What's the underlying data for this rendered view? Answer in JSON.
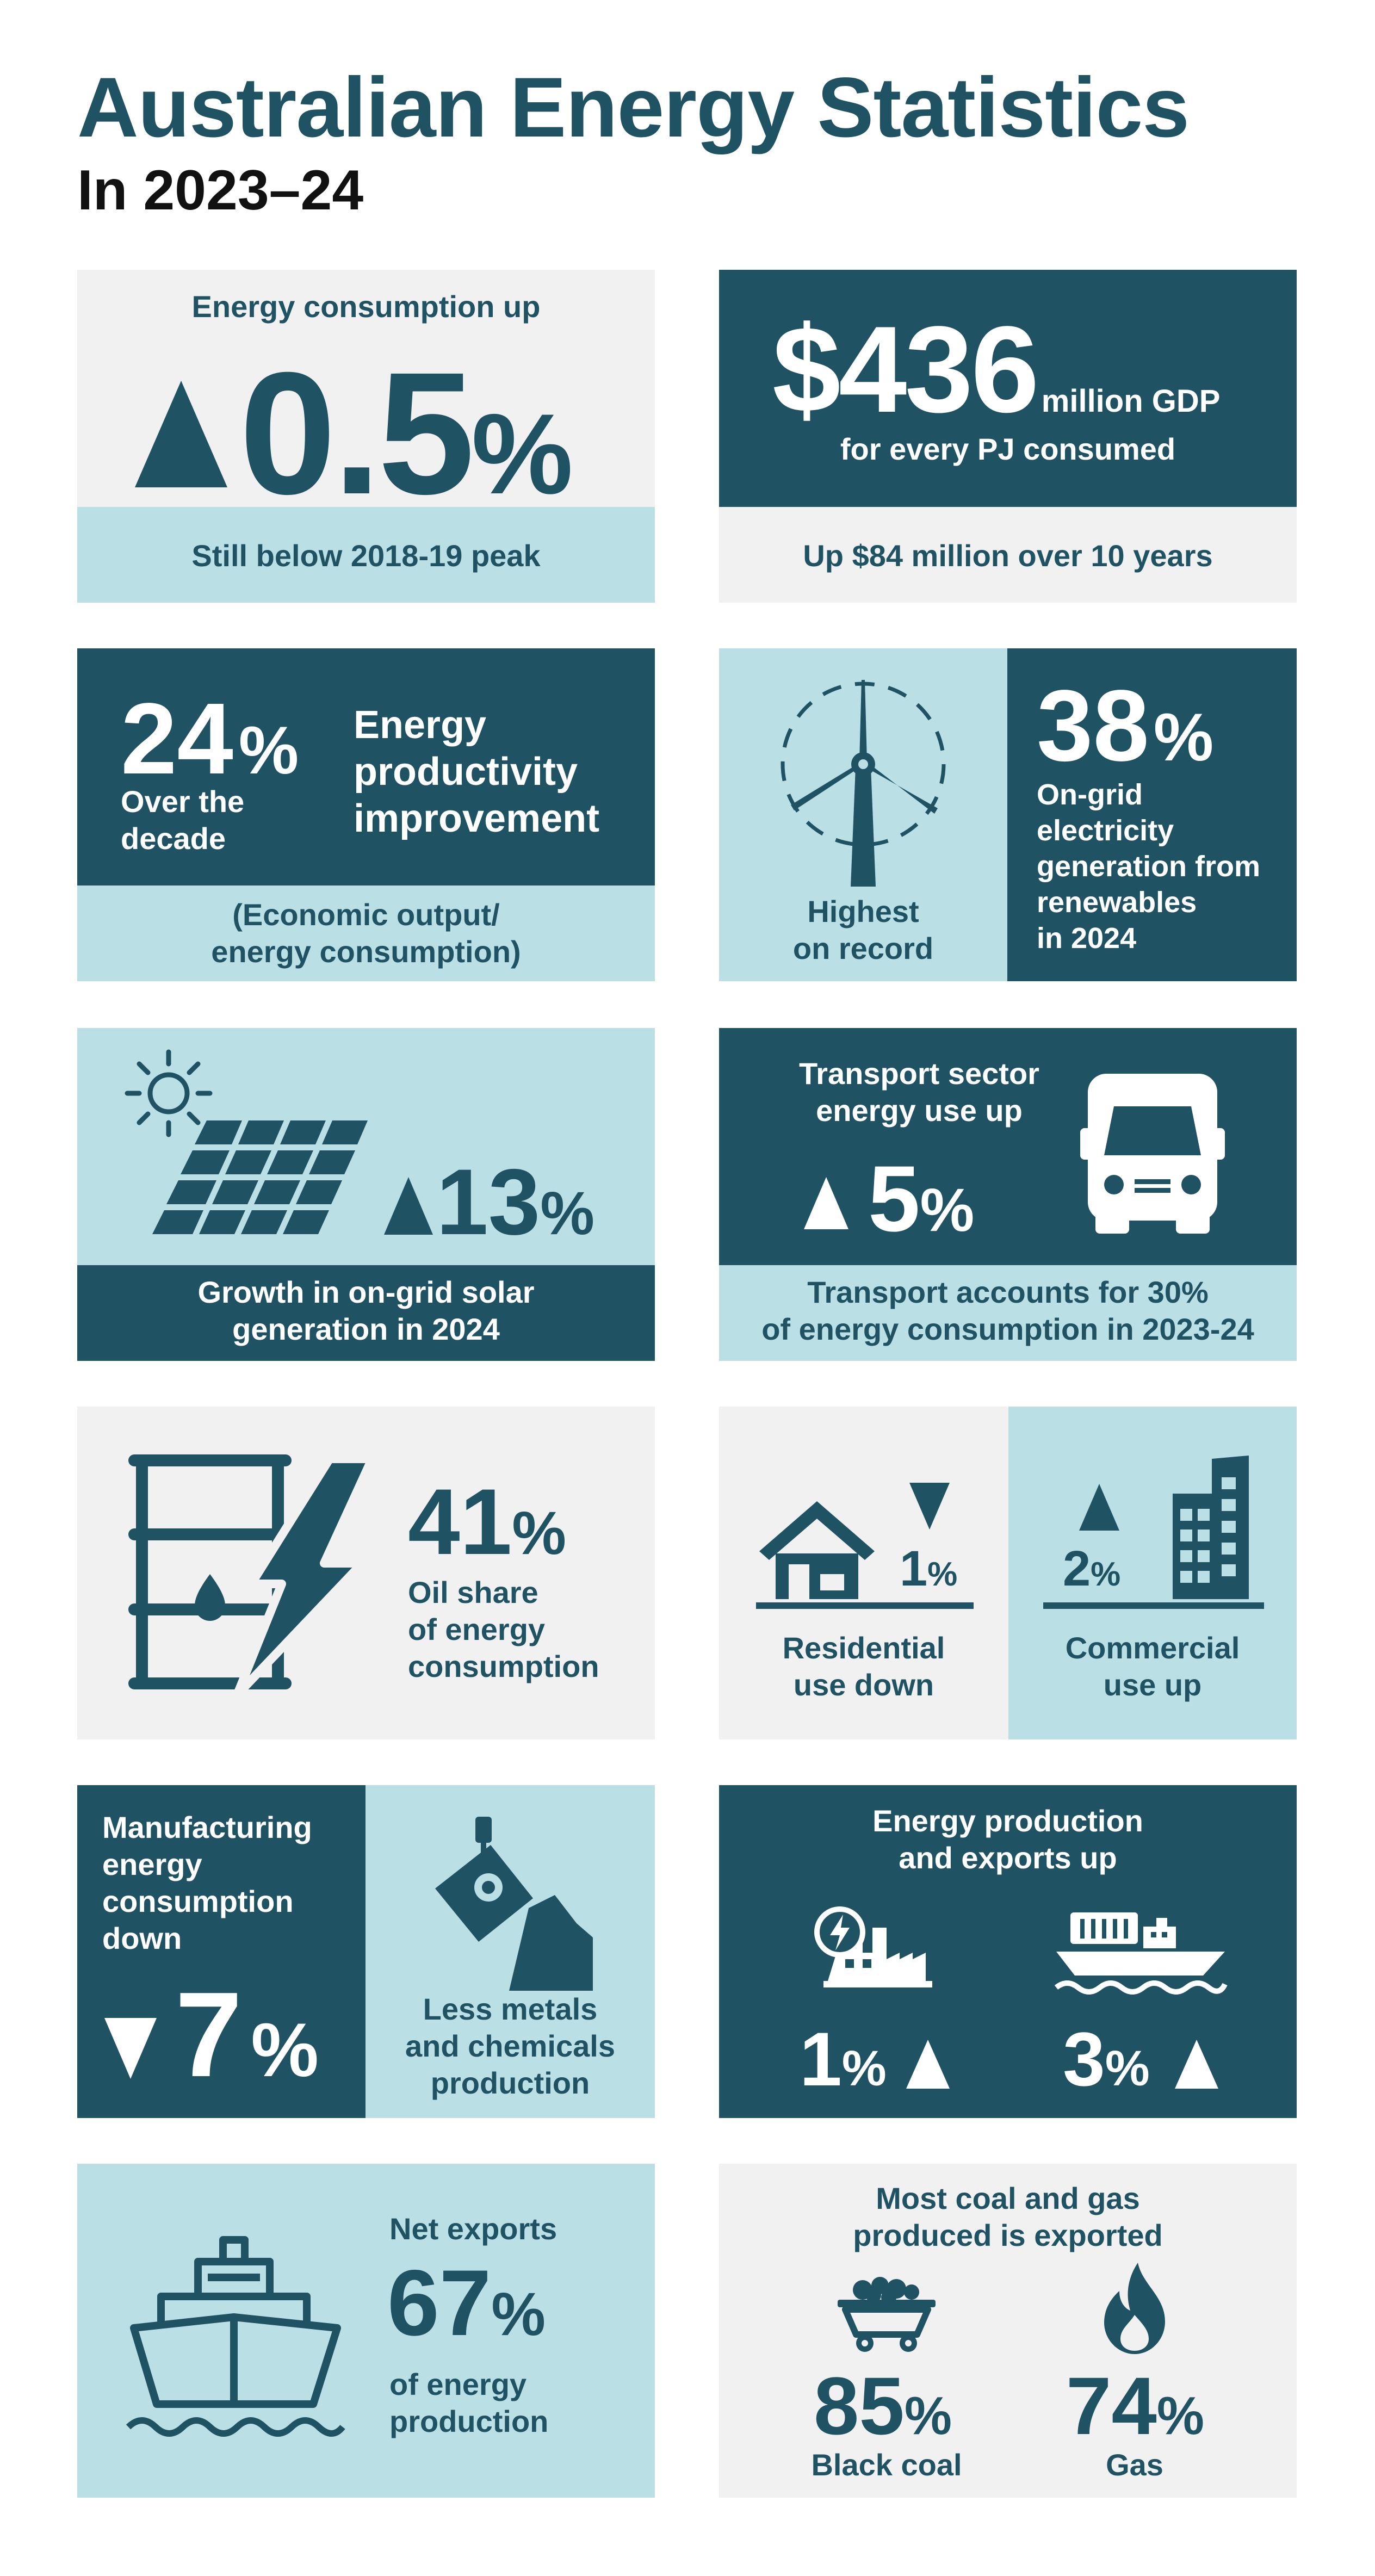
{
  "header": {
    "title": "Australian Energy Statistics",
    "subtitle": "In 2023–24"
  },
  "colors": {
    "dark_teal": "#1f5263",
    "light_teal": "#badfe5",
    "light_grey": "#f1f1f2"
  },
  "tiles": {
    "consumption": {
      "label": "Energy consumption up",
      "value": "0.5",
      "unit": "%",
      "direction": "up",
      "footer": "Still below 2018-19 peak"
    },
    "gdp": {
      "value": "$436",
      "value_suffix": "million GDP",
      "line2": "for every PJ consumed",
      "footer": "Up $84 million over 10 years"
    },
    "productivity": {
      "value": "24",
      "unit": "%",
      "sub_line1": "Over the",
      "sub_line2": "decade",
      "label_line1": "Energy",
      "label_line2": "productivity",
      "label_line3": "improvement",
      "footer_line1": "(Economic output/",
      "footer_line2": "energy consumption)"
    },
    "renewables": {
      "icon": "wind-turbine-icon",
      "side_line1": "Highest",
      "side_line2": "on record",
      "value": "38",
      "unit": "%",
      "desc_line1": "On-grid",
      "desc_line2": "electricity",
      "desc_line3": "generation from",
      "desc_line4": "renewables",
      "desc_line5": "in 2024"
    },
    "solar": {
      "icons": [
        "sun-icon",
        "solar-panel-icon"
      ],
      "value": "13",
      "unit": "%",
      "direction": "up",
      "footer_line1": "Growth in on-grid solar",
      "footer_line2": "generation in 2024"
    },
    "transport": {
      "label_line1": "Transport sector",
      "label_line2": "energy use up",
      "value": "5",
      "unit": "%",
      "direction": "up",
      "icon": "truck-icon",
      "footer_line1": "Transport accounts for 30%",
      "footer_line2": "of energy consumption in 2023-24"
    },
    "oil": {
      "icon": "oil-barrel-lightning-icon",
      "value": "41",
      "unit": "%",
      "desc_line1": "Oil share",
      "desc_line2": "of energy",
      "desc_line3": "consumption"
    },
    "residential": {
      "icon": "house-icon",
      "value": "1",
      "unit": "%",
      "direction": "down",
      "label_line1": "Residential",
      "label_line2": "use down"
    },
    "commercial": {
      "icon": "office-building-icon",
      "value": "2",
      "unit": "%",
      "direction": "up",
      "label_line1": "Commercial",
      "label_line2": "use up"
    },
    "manufacturing": {
      "label_line1": "Manufacturing",
      "label_line2": "energy",
      "label_line3": "consumption",
      "label_line4": "down",
      "value": "7",
      "unit": "%",
      "direction": "down",
      "icon": "metal-ladle-icon",
      "side_line1": "Less metals",
      "side_line2": "and chemicals",
      "side_line3": "production"
    },
    "production": {
      "label_line1": "Energy production",
      "label_line2": "and exports up",
      "left_icon": "power-plant-icon",
      "left_value": "1",
      "right_icon": "cargo-ship-icon",
      "right_value": "3",
      "unit": "%",
      "direction": "up"
    },
    "net_exports": {
      "icon": "ship-icon",
      "label": "Net exports",
      "value": "67",
      "unit": "%",
      "desc_line1": "of energy",
      "desc_line2": "production"
    },
    "coal_gas": {
      "label_line1": "Most coal and gas",
      "label_line2": "produced is exported",
      "coal_icon": "coal-cart-icon",
      "coal_value": "85",
      "coal_label": "Black coal",
      "gas_icon": "flame-icon",
      "gas_value": "74",
      "gas_label": "Gas",
      "unit": "%"
    }
  }
}
